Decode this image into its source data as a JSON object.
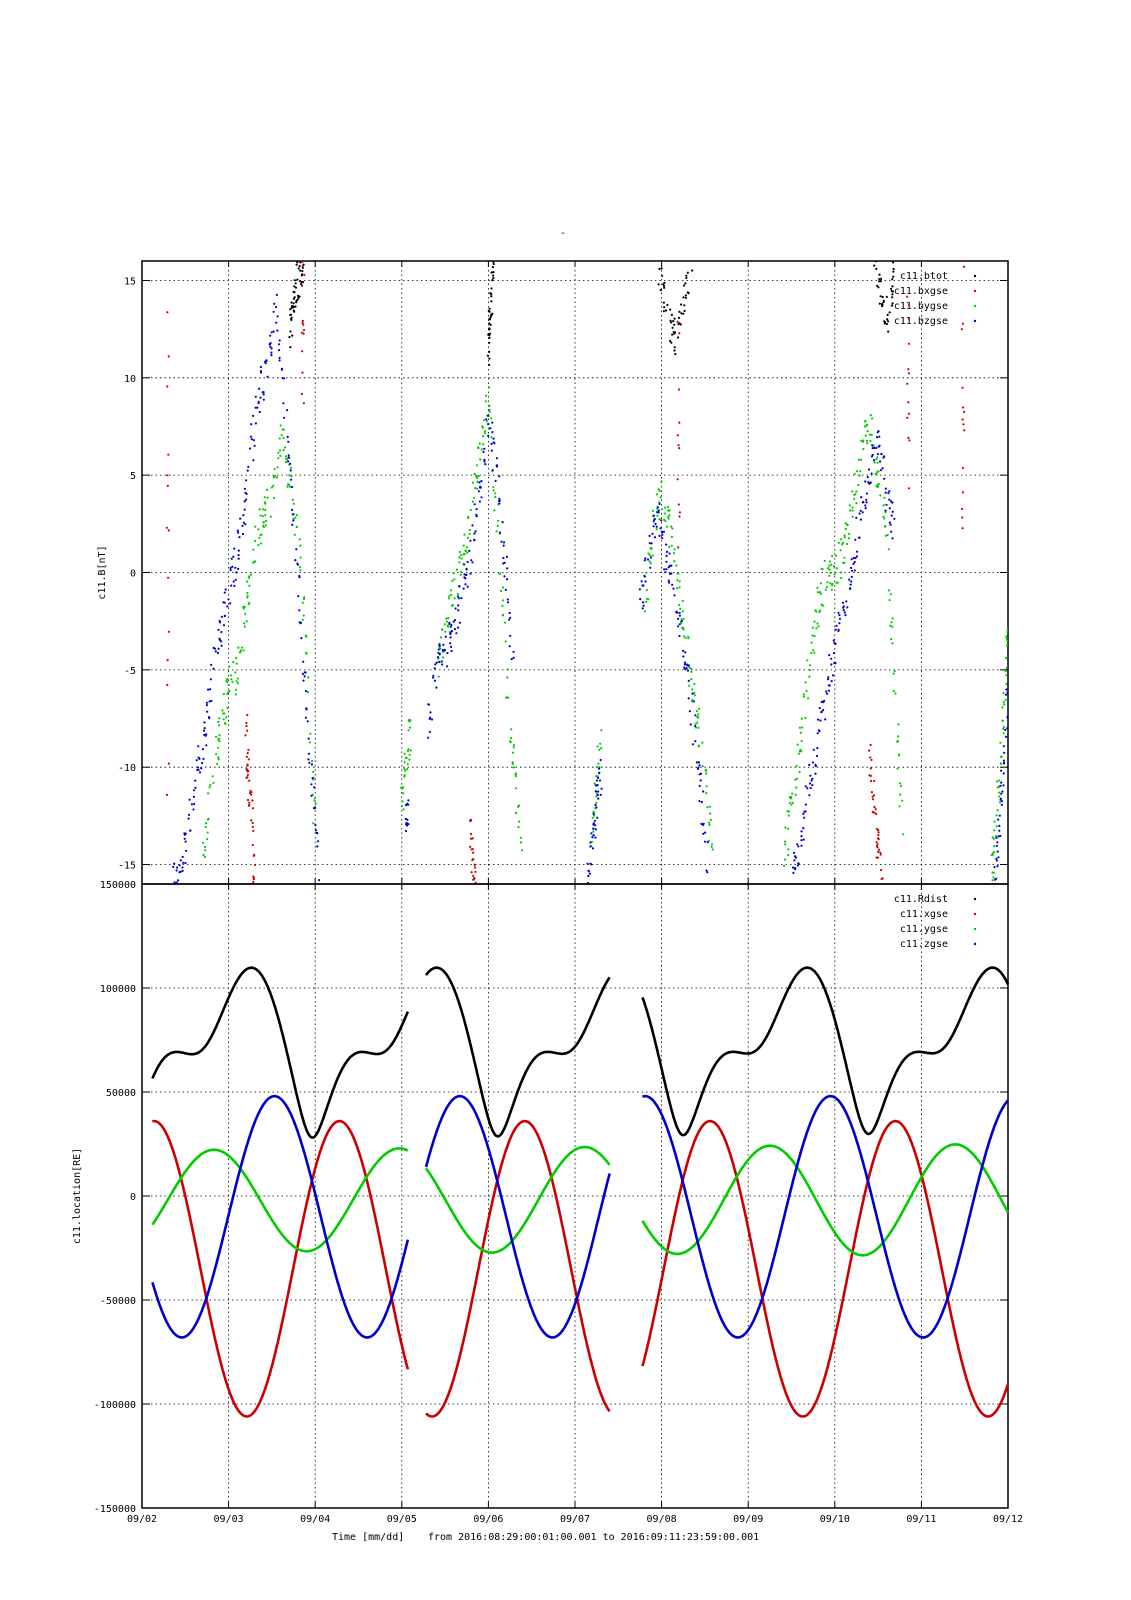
{
  "figure": {
    "title": "-",
    "footer": {
      "xlabel": "Time [mm/dd]",
      "range_text": "from 2016:08:29:00:01:00.001  to  2016:09:11:23:59:00.001"
    }
  },
  "chart_data": [
    {
      "type": "scatter",
      "ylabel": "c11.B[nT]",
      "xlabel": "",
      "xlim": [
        "09/02",
        "09/12"
      ],
      "ylim": [
        -16,
        16
      ],
      "yticks": [
        15,
        10,
        5,
        0,
        -5,
        -10,
        -15
      ],
      "grid": true,
      "legend_position": "top-right",
      "series": [
        {
          "name": "c11.btot",
          "color": "#000000",
          "segments": [
            {
              "x": [
                1.7,
                1.74,
                1.78,
                1.82,
                1.86
              ],
              "y": [
                12,
                13.5,
                14.5,
                15.5,
                16
              ]
            },
            {
              "x": [
                4.0,
                4.02,
                4.04,
                4.06
              ],
              "y": [
                11,
                13,
                14.5,
                16
              ]
            },
            {
              "x": [
                5.95,
                6.05,
                6.15,
                6.25,
                6.35
              ],
              "y": [
                16,
                14,
                12,
                14,
                16
              ]
            },
            {
              "x": [
                8.45,
                8.55,
                8.62,
                8.68
              ],
              "y": [
                16,
                14,
                13,
                15.5
              ]
            }
          ]
        },
        {
          "name": "c11.bxgse",
          "color": "#cc0000",
          "segments": [
            {
              "x": [
                0.3,
                0.3
              ],
              "y": [
                16,
                -16
              ]
            },
            {
              "x": [
                1.2,
                1.22,
                1.26,
                1.3
              ],
              "y": [
                -8,
                -10,
                -12,
                -16
              ]
            },
            {
              "x": [
                1.86,
                1.86
              ],
              "y": [
                16,
                8
              ]
            },
            {
              "x": [
                3.8,
                3.82,
                3.85
              ],
              "y": [
                -13,
                -15,
                -16
              ]
            },
            {
              "x": [
                6.2,
                6.2
              ],
              "y": [
                16,
                2
              ]
            },
            {
              "x": [
                8.4,
                8.45,
                8.5,
                8.55
              ],
              "y": [
                -9,
                -12,
                -14,
                -16
              ]
            },
            {
              "x": [
                8.85,
                8.85
              ],
              "y": [
                16,
                4
              ]
            },
            {
              "x": [
                9.48,
                9.48
              ],
              "y": [
                16,
                0
              ]
            }
          ]
        },
        {
          "name": "c11.bygse",
          "color": "#00cc00",
          "segments": [
            {
              "x": [
                0.7,
                0.8,
                0.9,
                1.0,
                1.1,
                1.2,
                1.3,
                1.4,
                1.5,
                1.6,
                1.7,
                1.8,
                1.9,
                2.0
              ],
              "y": [
                -15,
                -11,
                -8,
                -6,
                -5,
                -2,
                1,
                3,
                4,
                7,
                5,
                2,
                -4,
                -13
              ]
            },
            {
              "x": [
                3.0,
                3.05,
                3.1
              ],
              "y": [
                -12,
                -10,
                -8
              ]
            },
            {
              "x": [
                3.4,
                3.5,
                3.6,
                3.7,
                3.8,
                3.9,
                4.0,
                4.1,
                4.2
              ],
              "y": [
                -5,
                -3,
                -1,
                1,
                3,
                6,
                9,
                3,
                -5
              ]
            },
            {
              "x": [
                4.2,
                4.3,
                4.4
              ],
              "y": [
                -5,
                -10,
                -15
              ]
            },
            {
              "x": [
                5.2,
                5.25,
                5.3
              ],
              "y": [
                -14,
                -11,
                -8
              ]
            },
            {
              "x": [
                5.8,
                5.9,
                6.0,
                6.1,
                6.2,
                6.3,
                6.4,
                6.5,
                6.6
              ],
              "y": [
                -2,
                2,
                4,
                2,
                -1,
                -4,
                -7,
                -10,
                -15
              ]
            },
            {
              "x": [
                7.4,
                7.5,
                7.6,
                7.7,
                7.8,
                7.9,
                8.0,
                8.1,
                8.2,
                8.3,
                8.4,
                8.5,
                8.6,
                8.7,
                8.8
              ],
              "y": [
                -15,
                -12,
                -9,
                -5,
                -2,
                0,
                0,
                1,
                3,
                6,
                8,
                5,
                2,
                -6,
                -15
              ]
            },
            {
              "x": [
                9.8,
                9.85,
                9.9,
                9.95,
                10.0
              ],
              "y": [
                -16,
                -14,
                -11,
                -7,
                -3
              ]
            }
          ]
        },
        {
          "name": "c11.bzgse",
          "color": "#0000cc",
          "segments": [
            {
              "x": [
                0.35,
                0.45,
                0.55,
                0.65,
                0.75,
                0.85,
                0.95,
                1.05,
                1.15,
                1.25,
                1.35,
                1.45,
                1.55,
                1.65,
                1.75,
                1.85,
                1.95,
                2.05
              ],
              "y": [
                -16,
                -15,
                -13,
                -10,
                -8,
                -4,
                -2,
                0,
                2,
                6,
                9,
                11,
                14,
                8,
                3,
                -4,
                -10,
                -15
              ]
            },
            {
              "x": [
                3.05,
                3.1
              ],
              "y": [
                -13,
                -11
              ]
            },
            {
              "x": [
                3.3,
                3.4,
                3.5,
                3.6,
                3.7,
                3.8,
                3.9,
                4.0,
                4.1,
                4.2,
                4.3
              ],
              "y": [
                -8,
                -5,
                -4,
                -3,
                -1,
                1,
                4,
                8,
                5,
                0,
                -5
              ]
            },
            {
              "x": [
                5.15,
                5.2,
                5.25,
                5.3
              ],
              "y": [
                -16,
                -14,
                -12,
                -10
              ]
            },
            {
              "x": [
                5.75,
                5.85,
                5.95,
                6.05,
                6.15,
                6.25,
                6.35,
                6.45,
                6.55
              ],
              "y": [
                -2,
                1,
                3,
                1,
                -1,
                -4,
                -7,
                -11,
                -16
              ]
            },
            {
              "x": [
                7.5,
                7.6,
                7.7,
                7.8,
                7.9,
                8.0,
                8.1,
                8.2,
                8.3,
                8.4,
                8.5,
                8.6,
                8.7
              ],
              "y": [
                -16,
                -14,
                -11,
                -9,
                -6,
                -4,
                -2,
                0,
                3,
                5,
                7,
                4,
                2
              ]
            },
            {
              "x": [
                9.85,
                9.9,
                9.95,
                10.0
              ],
              "y": [
                -16,
                -13,
                -10,
                -6
              ]
            }
          ]
        }
      ]
    },
    {
      "type": "line",
      "ylabel": "c11.location[RE]",
      "xlabel": "Time [mm/dd]",
      "xlim": [
        "09/02",
        "09/12"
      ],
      "ylim": [
        -150000,
        150000
      ],
      "yticks": [
        150000,
        100000,
        50000,
        0,
        -50000,
        -100000,
        -150000
      ],
      "xticks": [
        "09/02",
        "09/03",
        "09/04",
        "09/05",
        "09/06",
        "09/07",
        "09/08",
        "09/09",
        "09/10",
        "09/11",
        "09/12"
      ],
      "grid": true,
      "legend_position": "top-right",
      "segments_x": [
        [
          0.12,
          3.07
        ],
        [
          3.28,
          5.4
        ],
        [
          5.78,
          10.0
        ]
      ],
      "series": [
        {
          "name": "c11.Rdist",
          "color": "#000000",
          "model": "rdist"
        },
        {
          "name": "c11.xgse",
          "color": "#cc0000",
          "model": "x"
        },
        {
          "name": "c11.ygse",
          "color": "#00cc00",
          "model": "y"
        },
        {
          "name": "c11.zgse",
          "color": "#0000cc",
          "model": "z"
        }
      ]
    }
  ]
}
